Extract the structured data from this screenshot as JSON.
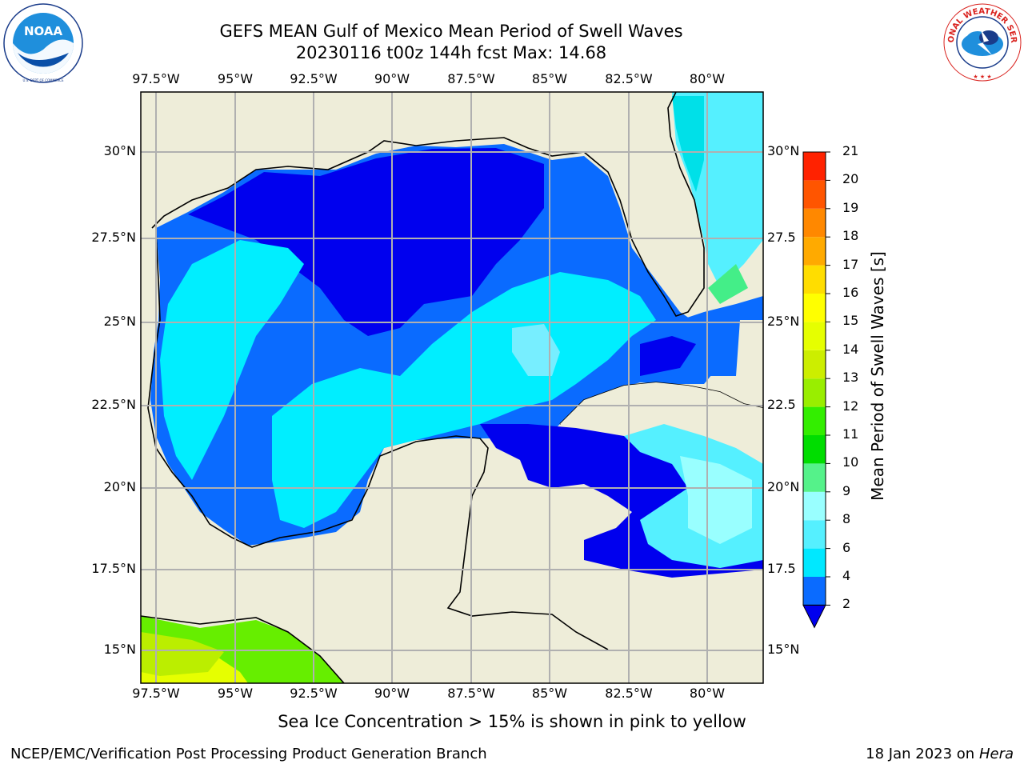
{
  "title": {
    "line1": "GEFS MEAN Gulf of Mexico Mean Period of Swell Waves",
    "line2": "20230116 t00z 144h fcst   Max: 14.68"
  },
  "logos": {
    "left": "NOAA",
    "left_ring": "NATIONAL OCEANIC AND ATMOSPHERIC ADMINISTRATION · U.S. DEPARTMENT OF COMMERCE",
    "right": "NATIONAL WEATHER SERVICE"
  },
  "map": {
    "lon_labels": [
      "97.5°W",
      "95°W",
      "92.5°W",
      "90°W",
      "87.5°W",
      "85°W",
      "82.5°W",
      "80°W"
    ],
    "lat_labels_left": [
      "30°N",
      "27.5°N",
      "25°N",
      "22.5°N",
      "20°N",
      "17.5°N",
      "15°N"
    ],
    "lat_labels_right": [
      "30°N",
      "27.5",
      "25°N",
      "22.5",
      "20°N",
      "17.5",
      "15°N"
    ],
    "colors": {
      "land": "#eeedd9",
      "coast": "#000000",
      "grid": "#b0b0b0"
    }
  },
  "colorbar": {
    "title": "Mean Period of Swell Waves [s]",
    "levels": [
      "2",
      "4",
      "6",
      "8",
      "9",
      "10",
      "11",
      "12",
      "13",
      "14",
      "15",
      "16",
      "17",
      "18",
      "19",
      "20",
      "21"
    ],
    "colors": [
      "#0a6bff",
      "#00e8ff",
      "#55f0ff",
      "#99ffff",
      "#55f28a",
      "#00dd00",
      "#33ee00",
      "#99ee00",
      "#ccee00",
      "#e6ff00",
      "#ffff00",
      "#ffdd00",
      "#ffaa00",
      "#ff8800",
      "#ff5500",
      "#ff2200"
    ],
    "under_color": "#0000ee"
  },
  "footnote": "Sea Ice Concentration > 15% is shown in pink to yellow",
  "credit": "NCEP/EMC/Verification Post Processing Product Generation Branch",
  "date": {
    "prefix": "18 Jan 2023 on ",
    "host": "Hera"
  }
}
